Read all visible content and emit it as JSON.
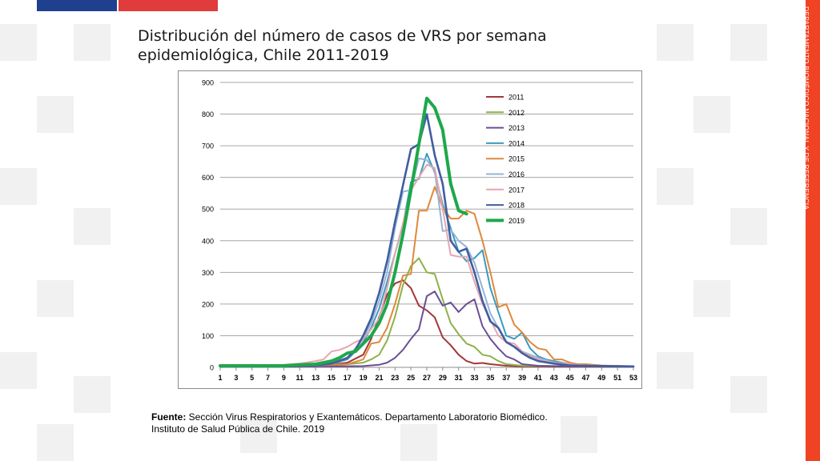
{
  "title": "Distribución del número de casos de VRS por semana epidemiológica, Chile 2011-2019",
  "side_label": "DEPARTAMENTO BIOMÉDICO NACIONAL Y DE REFERENCIA",
  "source": {
    "label": "Fuente:",
    "line1": " Sección Virus Respiratorios y Exantemáticos. Departamento Laboratorio Biomédico.",
    "line2": "Instituto de Salud Pública de Chile. 2019"
  },
  "chart_data": {
    "type": "line",
    "title": "",
    "xlabel": "",
    "ylabel": "",
    "ylim": [
      0,
      900
    ],
    "yticks": [
      0,
      100,
      200,
      300,
      400,
      500,
      600,
      700,
      800,
      900
    ],
    "xlim": [
      1,
      53
    ],
    "xticks": [
      1,
      3,
      5,
      7,
      9,
      11,
      13,
      15,
      17,
      19,
      21,
      23,
      25,
      27,
      29,
      31,
      33,
      35,
      37,
      39,
      41,
      43,
      45,
      47,
      49,
      51,
      53
    ],
    "grid": true,
    "legend": "right",
    "series": [
      {
        "name": "2011",
        "color": "#a2373a",
        "width": 2,
        "points": [
          [
            1,
            3
          ],
          [
            3,
            3
          ],
          [
            5,
            3
          ],
          [
            7,
            3
          ],
          [
            9,
            3
          ],
          [
            11,
            4
          ],
          [
            13,
            5
          ],
          [
            15,
            8
          ],
          [
            17,
            15
          ],
          [
            19,
            40
          ],
          [
            20,
            90
          ],
          [
            21,
            160
          ],
          [
            22,
            230
          ],
          [
            23,
            265
          ],
          [
            24,
            275
          ],
          [
            25,
            250
          ],
          [
            26,
            195
          ],
          [
            27,
            180
          ],
          [
            28,
            158
          ],
          [
            29,
            95
          ],
          [
            30,
            70
          ],
          [
            31,
            40
          ],
          [
            32,
            20
          ],
          [
            33,
            12
          ],
          [
            34,
            14
          ],
          [
            35,
            10
          ],
          [
            37,
            5
          ],
          [
            39,
            3
          ],
          [
            45,
            2
          ],
          [
            53,
            2
          ]
        ]
      },
      {
        "name": "2012",
        "color": "#8cb14a",
        "width": 2,
        "points": [
          [
            1,
            3
          ],
          [
            5,
            3
          ],
          [
            9,
            3
          ],
          [
            13,
            3
          ],
          [
            15,
            6
          ],
          [
            17,
            10
          ],
          [
            19,
            15
          ],
          [
            20,
            25
          ],
          [
            21,
            40
          ],
          [
            22,
            85
          ],
          [
            23,
            160
          ],
          [
            24,
            260
          ],
          [
            25,
            320
          ],
          [
            26,
            345
          ],
          [
            27,
            300
          ],
          [
            28,
            295
          ],
          [
            29,
            215
          ],
          [
            30,
            140
          ],
          [
            31,
            105
          ],
          [
            32,
            75
          ],
          [
            33,
            65
          ],
          [
            34,
            40
          ],
          [
            35,
            35
          ],
          [
            36,
            20
          ],
          [
            37,
            10
          ],
          [
            39,
            5
          ],
          [
            45,
            3
          ],
          [
            53,
            2
          ]
        ]
      },
      {
        "name": "2013",
        "color": "#6b4e95",
        "width": 2,
        "points": [
          [
            1,
            2
          ],
          [
            9,
            2
          ],
          [
            15,
            3
          ],
          [
            19,
            4
          ],
          [
            21,
            8
          ],
          [
            22,
            15
          ],
          [
            23,
            30
          ],
          [
            24,
            55
          ],
          [
            25,
            90
          ],
          [
            26,
            120
          ],
          [
            27,
            225
          ],
          [
            28,
            240
          ],
          [
            29,
            195
          ],
          [
            30,
            205
          ],
          [
            31,
            175
          ],
          [
            32,
            200
          ],
          [
            33,
            215
          ],
          [
            34,
            130
          ],
          [
            35,
            90
          ],
          [
            36,
            60
          ],
          [
            37,
            35
          ],
          [
            38,
            25
          ],
          [
            39,
            10
          ],
          [
            41,
            5
          ],
          [
            45,
            3
          ],
          [
            53,
            2
          ]
        ]
      },
      {
        "name": "2014",
        "color": "#3a9bbf",
        "width": 2,
        "points": [
          [
            1,
            3
          ],
          [
            5,
            3
          ],
          [
            9,
            4
          ],
          [
            13,
            5
          ],
          [
            15,
            10
          ],
          [
            17,
            25
          ],
          [
            18,
            50
          ],
          [
            19,
            80
          ],
          [
            20,
            125
          ],
          [
            21,
            185
          ],
          [
            22,
            270
          ],
          [
            23,
            360
          ],
          [
            24,
            450
          ],
          [
            25,
            585
          ],
          [
            26,
            595
          ],
          [
            27,
            675
          ],
          [
            28,
            615
          ],
          [
            29,
            515
          ],
          [
            30,
            440
          ],
          [
            31,
            365
          ],
          [
            32,
            335
          ],
          [
            33,
            345
          ],
          [
            34,
            370
          ],
          [
            35,
            250
          ],
          [
            36,
            175
          ],
          [
            37,
            100
          ],
          [
            38,
            90
          ],
          [
            39,
            110
          ],
          [
            40,
            60
          ],
          [
            41,
            35
          ],
          [
            42,
            25
          ],
          [
            43,
            20
          ],
          [
            45,
            10
          ],
          [
            47,
            6
          ],
          [
            53,
            3
          ]
        ]
      },
      {
        "name": "2015",
        "color": "#e0883a",
        "width": 2,
        "points": [
          [
            1,
            3
          ],
          [
            5,
            3
          ],
          [
            9,
            4
          ],
          [
            13,
            5
          ],
          [
            15,
            8
          ],
          [
            17,
            10
          ],
          [
            19,
            25
          ],
          [
            20,
            75
          ],
          [
            21,
            80
          ],
          [
            22,
            125
          ],
          [
            23,
            200
          ],
          [
            24,
            290
          ],
          [
            25,
            295
          ],
          [
            26,
            495
          ],
          [
            27,
            495
          ],
          [
            28,
            570
          ],
          [
            29,
            505
          ],
          [
            30,
            470
          ],
          [
            31,
            470
          ],
          [
            32,
            495
          ],
          [
            33,
            485
          ],
          [
            34,
            400
          ],
          [
            35,
            300
          ],
          [
            36,
            190
          ],
          [
            37,
            200
          ],
          [
            38,
            135
          ],
          [
            39,
            110
          ],
          [
            40,
            80
          ],
          [
            41,
            60
          ],
          [
            42,
            55
          ],
          [
            43,
            25
          ],
          [
            44,
            25
          ],
          [
            45,
            15
          ],
          [
            46,
            10
          ],
          [
            47,
            10
          ],
          [
            49,
            6
          ],
          [
            53,
            3
          ]
        ]
      },
      {
        "name": "2016",
        "color": "#95b3d7",
        "width": 2,
        "points": [
          [
            1,
            3
          ],
          [
            5,
            3
          ],
          [
            9,
            4
          ],
          [
            13,
            5
          ],
          [
            15,
            12
          ],
          [
            17,
            30
          ],
          [
            18,
            60
          ],
          [
            19,
            90
          ],
          [
            20,
            140
          ],
          [
            21,
            210
          ],
          [
            22,
            300
          ],
          [
            23,
            440
          ],
          [
            24,
            555
          ],
          [
            25,
            560
          ],
          [
            26,
            660
          ],
          [
            27,
            655
          ],
          [
            28,
            620
          ],
          [
            29,
            430
          ],
          [
            30,
            435
          ],
          [
            31,
            400
          ],
          [
            32,
            380
          ],
          [
            33,
            330
          ],
          [
            34,
            250
          ],
          [
            35,
            170
          ],
          [
            36,
            125
          ],
          [
            37,
            80
          ],
          [
            38,
            65
          ],
          [
            39,
            50
          ],
          [
            40,
            40
          ],
          [
            41,
            30
          ],
          [
            43,
            15
          ],
          [
            45,
            8
          ],
          [
            47,
            5
          ],
          [
            53,
            3
          ]
        ]
      },
      {
        "name": "2017",
        "color": "#e6a6ad",
        "width": 2,
        "points": [
          [
            1,
            5
          ],
          [
            3,
            5
          ],
          [
            5,
            8
          ],
          [
            7,
            6
          ],
          [
            9,
            8
          ],
          [
            11,
            12
          ],
          [
            13,
            20
          ],
          [
            14,
            25
          ],
          [
            15,
            50
          ],
          [
            16,
            55
          ],
          [
            17,
            65
          ],
          [
            18,
            80
          ],
          [
            19,
            90
          ],
          [
            20,
            120
          ],
          [
            21,
            155
          ],
          [
            22,
            250
          ],
          [
            23,
            360
          ],
          [
            24,
            455
          ],
          [
            25,
            560
          ],
          [
            26,
            600
          ],
          [
            27,
            640
          ],
          [
            28,
            630
          ],
          [
            29,
            500
          ],
          [
            30,
            355
          ],
          [
            31,
            350
          ],
          [
            32,
            350
          ],
          [
            33,
            270
          ],
          [
            34,
            200
          ],
          [
            35,
            150
          ],
          [
            36,
            100
          ],
          [
            37,
            80
          ],
          [
            38,
            75
          ],
          [
            39,
            50
          ],
          [
            40,
            35
          ],
          [
            41,
            25
          ],
          [
            43,
            15
          ],
          [
            45,
            10
          ],
          [
            47,
            6
          ],
          [
            53,
            3
          ]
        ]
      },
      {
        "name": "2018",
        "color": "#3f5ea0",
        "width": 2.6,
        "points": [
          [
            1,
            3
          ],
          [
            5,
            3
          ],
          [
            9,
            4
          ],
          [
            13,
            6
          ],
          [
            15,
            12
          ],
          [
            17,
            30
          ],
          [
            18,
            55
          ],
          [
            19,
            100
          ],
          [
            20,
            155
          ],
          [
            21,
            235
          ],
          [
            22,
            335
          ],
          [
            23,
            460
          ],
          [
            24,
            575
          ],
          [
            25,
            690
          ],
          [
            26,
            705
          ],
          [
            27,
            800
          ],
          [
            28,
            670
          ],
          [
            29,
            580
          ],
          [
            30,
            400
          ],
          [
            31,
            365
          ],
          [
            32,
            375
          ],
          [
            33,
            300
          ],
          [
            34,
            210
          ],
          [
            35,
            145
          ],
          [
            36,
            125
          ],
          [
            37,
            80
          ],
          [
            38,
            65
          ],
          [
            39,
            45
          ],
          [
            40,
            30
          ],
          [
            41,
            20
          ],
          [
            43,
            12
          ],
          [
            45,
            6
          ],
          [
            47,
            5
          ],
          [
            53,
            3
          ]
        ]
      },
      {
        "name": "2019",
        "color": "#1ea84a",
        "width": 4,
        "points": [
          [
            1,
            5
          ],
          [
            3,
            5
          ],
          [
            5,
            5
          ],
          [
            7,
            5
          ],
          [
            9,
            5
          ],
          [
            11,
            8
          ],
          [
            13,
            10
          ],
          [
            14,
            15
          ],
          [
            15,
            20
          ],
          [
            16,
            30
          ],
          [
            17,
            45
          ],
          [
            18,
            50
          ],
          [
            19,
            75
          ],
          [
            20,
            100
          ],
          [
            21,
            140
          ],
          [
            22,
            200
          ],
          [
            23,
            300
          ],
          [
            24,
            420
          ],
          [
            25,
            560
          ],
          [
            26,
            705
          ],
          [
            27,
            850
          ],
          [
            28,
            820
          ],
          [
            29,
            750
          ],
          [
            30,
            580
          ],
          [
            31,
            495
          ],
          [
            32,
            485
          ]
        ]
      }
    ]
  }
}
